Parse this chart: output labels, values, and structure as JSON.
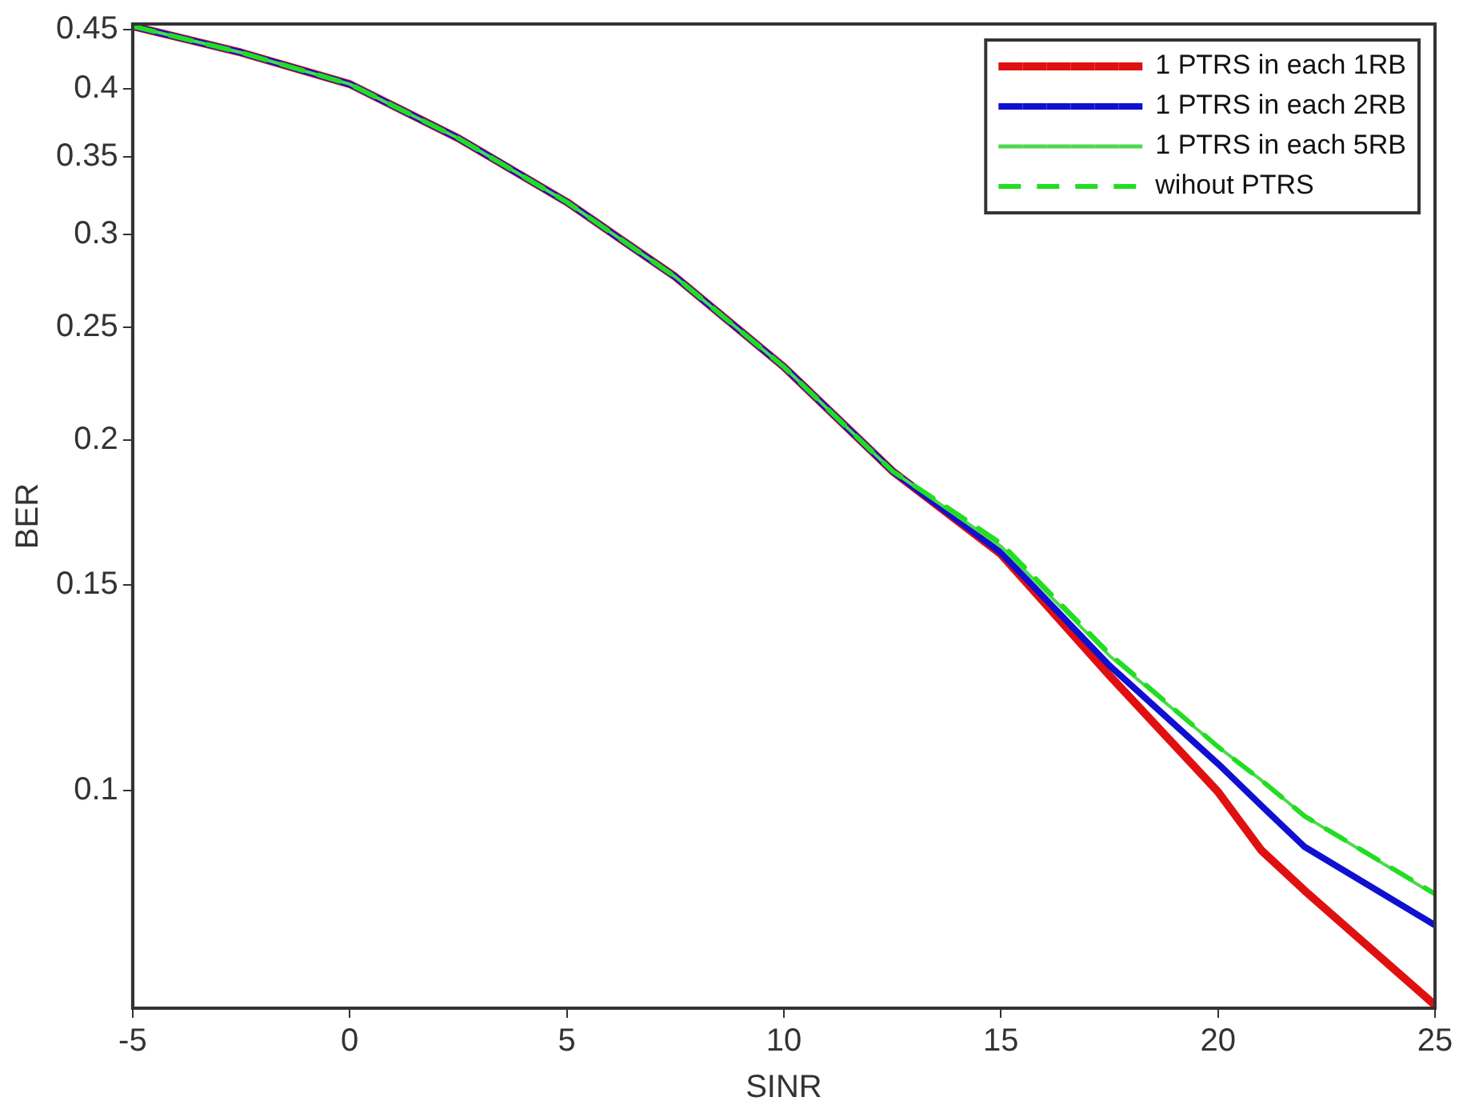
{
  "chart_data": {
    "type": "line",
    "xlabel": "SINR",
    "ylabel": "BER",
    "x": [
      -5,
      -2.5,
      0,
      2.5,
      5,
      7.5,
      10,
      12.5,
      15,
      17.5,
      20,
      21,
      22,
      25
    ],
    "series": [
      {
        "name": "1 PTRS in each 1RB",
        "color": "#e01010",
        "values": [
          0.453,
          0.43,
          0.404,
          0.363,
          0.32,
          0.276,
          0.231,
          0.188,
          0.1595,
          0.1255,
          0.0997,
          0.0888,
          0.082,
          0.0654
        ]
      },
      {
        "name": "1 PTRS in each 2RB",
        "color": "#1010d0",
        "values": [
          0.453,
          0.43,
          0.404,
          0.363,
          0.32,
          0.276,
          0.231,
          0.188,
          0.16,
          0.128,
          0.1054,
          0.097,
          0.0894,
          0.0766
        ]
      },
      {
        "name": "1 PTRS in each 5RB",
        "color": "#4cd94c",
        "values": [
          0.453,
          0.43,
          0.404,
          0.363,
          0.32,
          0.276,
          0.231,
          0.188,
          0.162,
          0.1305,
          0.109,
          0.102,
          0.095,
          0.0813
        ]
      },
      {
        "name": "wihout PTRS",
        "color": "#22dd22",
        "line_style": "dashed",
        "values": [
          0.453,
          0.43,
          0.404,
          0.363,
          0.32,
          0.276,
          0.231,
          0.188,
          0.163,
          0.131,
          0.109,
          0.102,
          0.095,
          0.0815
        ]
      }
    ],
    "xlim": [
      -5,
      25
    ],
    "xticks": [
      -5,
      0,
      5,
      10,
      15,
      20,
      25
    ],
    "ylim": [
      0.065,
      0.455
    ],
    "yticks": [
      0.1,
      0.15,
      0.2,
      0.25,
      0.3,
      0.35,
      0.4,
      0.45
    ],
    "log": "y",
    "grid": false,
    "legend": "top right",
    "line_style": "solid",
    "marker": "none"
  }
}
